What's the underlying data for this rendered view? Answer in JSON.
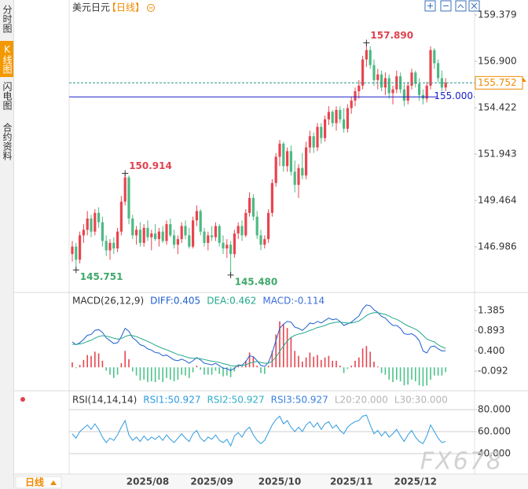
{
  "sidebar": {
    "tabs": [
      "分时图",
      "K线图",
      "闪电图",
      "合约资料"
    ],
    "active": 1
  },
  "header": {
    "symbol": "美元日元",
    "period": "【日线】"
  },
  "footer": {
    "period": "日线"
  },
  "watermark": "FX678",
  "chart_data": [
    {
      "type": "candlestick",
      "up_color": "#e8454f",
      "down_color": "#4cba83",
      "ylim": [
        144.633,
        159.967
      ],
      "yticks": [
        159.379,
        {
          "value": 156.9,
          "label": "156.900"
        },
        154.422,
        151.943,
        149.464,
        146.986
      ],
      "xticks": [
        {
          "value": 20,
          "label": "2025/08"
        },
        {
          "value": 37,
          "label": "2025/09"
        },
        {
          "value": 55,
          "label": "2025/10"
        },
        {
          "value": 74,
          "label": "2025/11"
        },
        {
          "value": 91,
          "label": "2025/12"
        }
      ],
      "levels": [
        {
          "value": 155,
          "label": "155.000",
          "color": "#1a22c8"
        }
      ],
      "last_price": {
        "value": 155.752,
        "label": "155.752",
        "color": "#f08a00",
        "line_color": "#2a9a8a"
      },
      "annotations": [
        {
          "value": 157.89,
          "label": "157.890",
          "color": "#e0434f"
        },
        {
          "value": 150.914,
          "label": "150.914",
          "color": "#e0434f"
        },
        {
          "value": 145.751,
          "label": "145.751",
          "color": "#3fa86b"
        },
        {
          "value": 145.48,
          "label": "145.480",
          "color": "#3fa86b"
        }
      ],
      "candles": [
        [
          146.6,
          147.3,
          146.2,
          147.0
        ],
        [
          147.0,
          147.2,
          145.751,
          146.3
        ],
        [
          146.3,
          147.8,
          146.1,
          147.6
        ],
        [
          147.6,
          148.2,
          147.2,
          147.9
        ],
        [
          147.9,
          148.9,
          147.6,
          148.5
        ],
        [
          148.5,
          148.7,
          147.5,
          147.8
        ],
        [
          147.8,
          149.0,
          147.6,
          148.8
        ],
        [
          148.8,
          149.1,
          148.0,
          148.3
        ],
        [
          148.3,
          148.6,
          147.0,
          147.3
        ],
        [
          147.3,
          147.6,
          146.5,
          146.8
        ],
        [
          146.8,
          147.4,
          146.3,
          147.2
        ],
        [
          147.2,
          147.5,
          146.6,
          146.9
        ],
        [
          146.9,
          148.0,
          146.7,
          147.8
        ],
        [
          147.8,
          149.7,
          147.6,
          149.4
        ],
        [
          149.4,
          150.914,
          149.2,
          150.7
        ],
        [
          150.7,
          150.8,
          148.2,
          148.5
        ],
        [
          148.5,
          148.7,
          147.4,
          147.6
        ],
        [
          147.6,
          148.1,
          147.1,
          147.9
        ],
        [
          147.9,
          148.3,
          147.0,
          147.2
        ],
        [
          147.2,
          148.2,
          147.0,
          148.0
        ],
        [
          148.0,
          148.4,
          147.3,
          147.5
        ],
        [
          147.5,
          147.9,
          146.8,
          147.7
        ],
        [
          147.7,
          148.2,
          147.3,
          147.4
        ],
        [
          147.4,
          148.0,
          147.0,
          147.8
        ],
        [
          147.8,
          148.1,
          147.2,
          147.3
        ],
        [
          147.3,
          148.4,
          147.1,
          148.2
        ],
        [
          148.2,
          148.5,
          147.5,
          147.6
        ],
        [
          147.6,
          147.9,
          146.9,
          147.1
        ],
        [
          147.1,
          147.6,
          146.6,
          147.4
        ],
        [
          147.4,
          148.3,
          147.2,
          148.1
        ],
        [
          148.1,
          148.4,
          147.4,
          147.6
        ],
        [
          147.6,
          148.0,
          146.9,
          147.0
        ],
        [
          147.0,
          148.6,
          146.9,
          148.4
        ],
        [
          148.4,
          149.2,
          148.1,
          148.9
        ],
        [
          148.9,
          149.0,
          147.6,
          147.8
        ],
        [
          147.8,
          148.0,
          147.0,
          147.2
        ],
        [
          147.2,
          147.8,
          146.8,
          147.6
        ],
        [
          147.6,
          148.1,
          147.3,
          147.5
        ],
        [
          147.5,
          148.3,
          147.3,
          148.1
        ],
        [
          148.1,
          148.2,
          147.0,
          147.2
        ],
        [
          147.2,
          147.6,
          146.6,
          146.9
        ],
        [
          146.9,
          147.4,
          146.4,
          147.1
        ],
        [
          147.1,
          147.3,
          145.48,
          146.6
        ],
        [
          146.6,
          147.9,
          146.4,
          147.7
        ],
        [
          147.7,
          148.3,
          147.4,
          148.1
        ],
        [
          148.1,
          148.4,
          147.3,
          147.6
        ],
        [
          147.6,
          149.0,
          147.5,
          148.8
        ],
        [
          148.8,
          149.9,
          148.6,
          149.6
        ],
        [
          149.6,
          149.8,
          148.4,
          148.6
        ],
        [
          148.6,
          148.9,
          147.4,
          147.6
        ],
        [
          147.6,
          147.9,
          146.8,
          147.1
        ],
        [
          147.1,
          147.6,
          146.9,
          147.4
        ],
        [
          147.4,
          149.0,
          147.2,
          148.8
        ],
        [
          148.8,
          150.6,
          148.6,
          150.4
        ],
        [
          150.4,
          152.0,
          150.2,
          151.8
        ],
        [
          151.8,
          152.7,
          151.3,
          152.5
        ],
        [
          152.5,
          152.6,
          151.0,
          151.3
        ],
        [
          151.3,
          152.3,
          151.0,
          152.1
        ],
        [
          152.1,
          152.4,
          150.8,
          151.0
        ],
        [
          151.0,
          151.6,
          149.9,
          150.3
        ],
        [
          150.3,
          151.4,
          149.6,
          151.2
        ],
        [
          151.2,
          152.0,
          150.6,
          150.8
        ],
        [
          150.8,
          152.6,
          150.6,
          152.3
        ],
        [
          152.3,
          153.2,
          152.0,
          152.9
        ],
        [
          152.9,
          153.1,
          152.0,
          152.3
        ],
        [
          152.3,
          153.6,
          152.1,
          153.4
        ],
        [
          153.4,
          153.6,
          152.5,
          152.8
        ],
        [
          152.8,
          154.0,
          152.6,
          153.8
        ],
        [
          153.8,
          154.5,
          153.5,
          154.2
        ],
        [
          154.2,
          154.3,
          153.4,
          153.6
        ],
        [
          153.6,
          154.5,
          153.2,
          154.3
        ],
        [
          154.3,
          154.5,
          153.6,
          153.8
        ],
        [
          153.8,
          154.4,
          153.1,
          153.3
        ],
        [
          153.3,
          154.6,
          153.1,
          154.4
        ],
        [
          154.4,
          155.0,
          154.1,
          154.8
        ],
        [
          154.8,
          155.5,
          154.5,
          155.3
        ],
        [
          155.3,
          155.9,
          154.9,
          155.6
        ],
        [
          155.6,
          157.2,
          155.4,
          157.0
        ],
        [
          157.0,
          157.89,
          156.6,
          157.5
        ],
        [
          157.5,
          157.7,
          156.5,
          156.7
        ],
        [
          156.7,
          157.0,
          155.6,
          155.9
        ],
        [
          155.9,
          156.5,
          155.4,
          156.2
        ],
        [
          156.2,
          156.4,
          155.3,
          155.5
        ],
        [
          155.5,
          156.3,
          155.1,
          156.0
        ],
        [
          156.0,
          156.2,
          154.9,
          155.2
        ],
        [
          155.2,
          155.6,
          154.6,
          155.4
        ],
        [
          155.4,
          156.4,
          155.2,
          156.1
        ],
        [
          156.1,
          156.3,
          155.2,
          155.4
        ],
        [
          155.4,
          155.7,
          154.5,
          154.8
        ],
        [
          154.8,
          155.8,
          154.6,
          155.6
        ],
        [
          155.6,
          156.5,
          155.4,
          156.3
        ],
        [
          156.3,
          156.4,
          155.5,
          155.7
        ],
        [
          155.7,
          156.0,
          154.8,
          155.1
        ],
        [
          155.1,
          155.4,
          154.6,
          154.9
        ],
        [
          154.9,
          155.8,
          154.7,
          155.6
        ],
        [
          155.6,
          157.7,
          155.4,
          157.5
        ],
        [
          157.5,
          157.6,
          156.5,
          156.8
        ],
        [
          156.8,
          157.0,
          155.8,
          156.0
        ],
        [
          156.0,
          156.4,
          155.3,
          155.5
        ],
        [
          155.5,
          156.0,
          155.3,
          155.752
        ]
      ]
    },
    {
      "type": "macd",
      "title": "MACD(26,12,9)",
      "ylim": [
        -0.474,
        1.709
      ],
      "yticks": [
        1.385,
        0.893,
        {
          "value": 0.4,
          "label": "0.400"
        },
        -0.092
      ],
      "up_color": "#e8454f",
      "down_color": "#4cc38a",
      "series": [
        {
          "name": "DIFF:0.405",
          "color": "#1f5fd0",
          "values": [
            0.62,
            0.55,
            0.6,
            0.68,
            0.78,
            0.8,
            0.9,
            0.92,
            0.85,
            0.72,
            0.65,
            0.58,
            0.6,
            0.75,
            0.95,
            0.88,
            0.72,
            0.65,
            0.55,
            0.52,
            0.45,
            0.42,
            0.36,
            0.35,
            0.28,
            0.3,
            0.24,
            0.18,
            0.16,
            0.2,
            0.16,
            0.1,
            0.16,
            0.24,
            0.18,
            0.1,
            0.08,
            0.06,
            0.1,
            0.04,
            -0.02,
            -0.03,
            -0.08,
            -0.02,
            0.06,
            0.05,
            0.14,
            0.28,
            0.26,
            0.16,
            0.05,
            0.02,
            0.12,
            0.35,
            0.65,
            0.95,
            1.05,
            1.12,
            1.1,
            0.98,
            0.95,
            0.9,
            0.98,
            1.08,
            1.06,
            1.12,
            1.08,
            1.14,
            1.2,
            1.16,
            1.18,
            1.12,
            1.02,
            1.06,
            1.1,
            1.18,
            1.25,
            1.42,
            1.52,
            1.5,
            1.4,
            1.34,
            1.24,
            1.2,
            1.1,
            1.02,
            1.02,
            0.95,
            0.82,
            0.8,
            0.82,
            0.76,
            0.65,
            0.4,
            0.35,
            0.5,
            0.52,
            0.45,
            0.4,
            0.405
          ]
        },
        {
          "name": "DEA:0.462",
          "color": "#23a88c",
          "values": [
            0.56,
            0.56,
            0.57,
            0.59,
            0.63,
            0.66,
            0.71,
            0.75,
            0.77,
            0.76,
            0.74,
            0.71,
            0.69,
            0.7,
            0.75,
            0.78,
            0.77,
            0.75,
            0.71,
            0.67,
            0.63,
            0.59,
            0.54,
            0.5,
            0.46,
            0.43,
            0.39,
            0.35,
            0.31,
            0.29,
            0.26,
            0.23,
            0.22,
            0.22,
            0.21,
            0.19,
            0.17,
            0.15,
            0.14,
            0.12,
            0.09,
            0.07,
            0.04,
            0.03,
            0.04,
            0.04,
            0.06,
            0.1,
            0.13,
            0.14,
            0.12,
            0.1,
            0.1,
            0.15,
            0.25,
            0.39,
            0.52,
            0.64,
            0.73,
            0.78,
            0.81,
            0.83,
            0.86,
            0.9,
            0.93,
            0.97,
            0.99,
            1.02,
            1.06,
            1.08,
            1.1,
            1.1,
            1.09,
            1.08,
            1.08,
            1.1,
            1.13,
            1.19,
            1.26,
            1.31,
            1.33,
            1.33,
            1.31,
            1.29,
            1.25,
            1.2,
            1.17,
            1.12,
            1.06,
            1.01,
            0.97,
            0.93,
            0.87,
            0.78,
            0.69,
            0.65,
            0.62,
            0.55,
            0.5,
            0.462
          ]
        },
        {
          "name": "MACD:-0.114",
          "color": "#3a6fd8",
          "type": "bar",
          "values": [
            0.12,
            -0.02,
            0.06,
            0.18,
            0.3,
            0.28,
            0.38,
            0.34,
            0.16,
            -0.08,
            -0.18,
            -0.26,
            -0.18,
            0.1,
            0.4,
            0.2,
            -0.1,
            -0.2,
            -0.32,
            -0.3,
            -0.36,
            -0.34,
            -0.36,
            -0.3,
            -0.36,
            -0.26,
            -0.3,
            -0.34,
            -0.3,
            -0.18,
            -0.2,
            -0.26,
            -0.12,
            0.04,
            -0.06,
            -0.18,
            -0.18,
            -0.18,
            -0.08,
            -0.16,
            -0.22,
            -0.2,
            -0.24,
            -0.1,
            0.04,
            0.02,
            0.16,
            0.36,
            0.26,
            0.04,
            -0.14,
            -0.16,
            0.04,
            0.4,
            0.8,
            1.12,
            1.06,
            0.96,
            0.74,
            0.4,
            0.28,
            0.14,
            0.24,
            0.36,
            0.26,
            0.3,
            0.18,
            0.24,
            0.28,
            0.16,
            0.16,
            0.04,
            -0.14,
            -0.04,
            0.04,
            0.16,
            0.24,
            0.46,
            0.52,
            0.38,
            0.14,
            0.02,
            -0.14,
            -0.18,
            -0.3,
            -0.36,
            -0.3,
            -0.34,
            -0.44,
            -0.42,
            -0.3,
            -0.34,
            -0.44,
            -0.46,
            -0.44,
            -0.3,
            -0.2,
            -0.2,
            -0.2,
            -0.114
          ]
        }
      ]
    },
    {
      "type": "rsi",
      "title": "RSI(14,14,14)",
      "grid": true,
      "ylim": [
        22.1,
        91.4
      ],
      "yticks": [
        {
          "value": 80,
          "label": "80.000"
        },
        {
          "value": 60,
          "label": "60.000"
        },
        {
          "value": 40,
          "label": "40.000"
        }
      ],
      "series": [
        {
          "name": "RSI1:50.927",
          "color": "#2f9be0",
          "values": [
            58,
            54,
            60,
            63,
            66,
            62,
            67,
            62,
            55,
            50,
            54,
            52,
            57,
            64,
            70,
            57,
            52,
            55,
            51,
            56,
            52,
            55,
            53,
            56,
            52,
            57,
            53,
            50,
            54,
            58,
            54,
            51,
            58,
            61,
            54,
            51,
            55,
            53,
            57,
            52,
            50,
            53,
            47,
            56,
            59,
            55,
            61,
            64,
            57,
            52,
            49,
            52,
            59,
            66,
            71,
            74,
            67,
            70,
            64,
            60,
            64,
            60,
            66,
            69,
            64,
            68,
            62,
            67,
            69,
            63,
            66,
            61,
            58,
            64,
            67,
            69,
            70,
            74,
            75,
            66,
            58,
            61,
            56,
            60,
            55,
            58,
            62,
            56,
            51,
            57,
            61,
            55,
            51,
            49,
            56,
            66,
            60,
            54,
            50,
            50.927
          ]
        }
      ],
      "legend": [
        {
          "name": "RSI2:50.927",
          "color": "#2fb0c8"
        },
        {
          "name": "RSI3:50.927",
          "color": "#3a7fe0"
        },
        {
          "name": "L20:20.000",
          "color": "#b5b5b5"
        },
        {
          "name": "L30:30.000",
          "color": "#b5b5b5"
        }
      ]
    }
  ]
}
